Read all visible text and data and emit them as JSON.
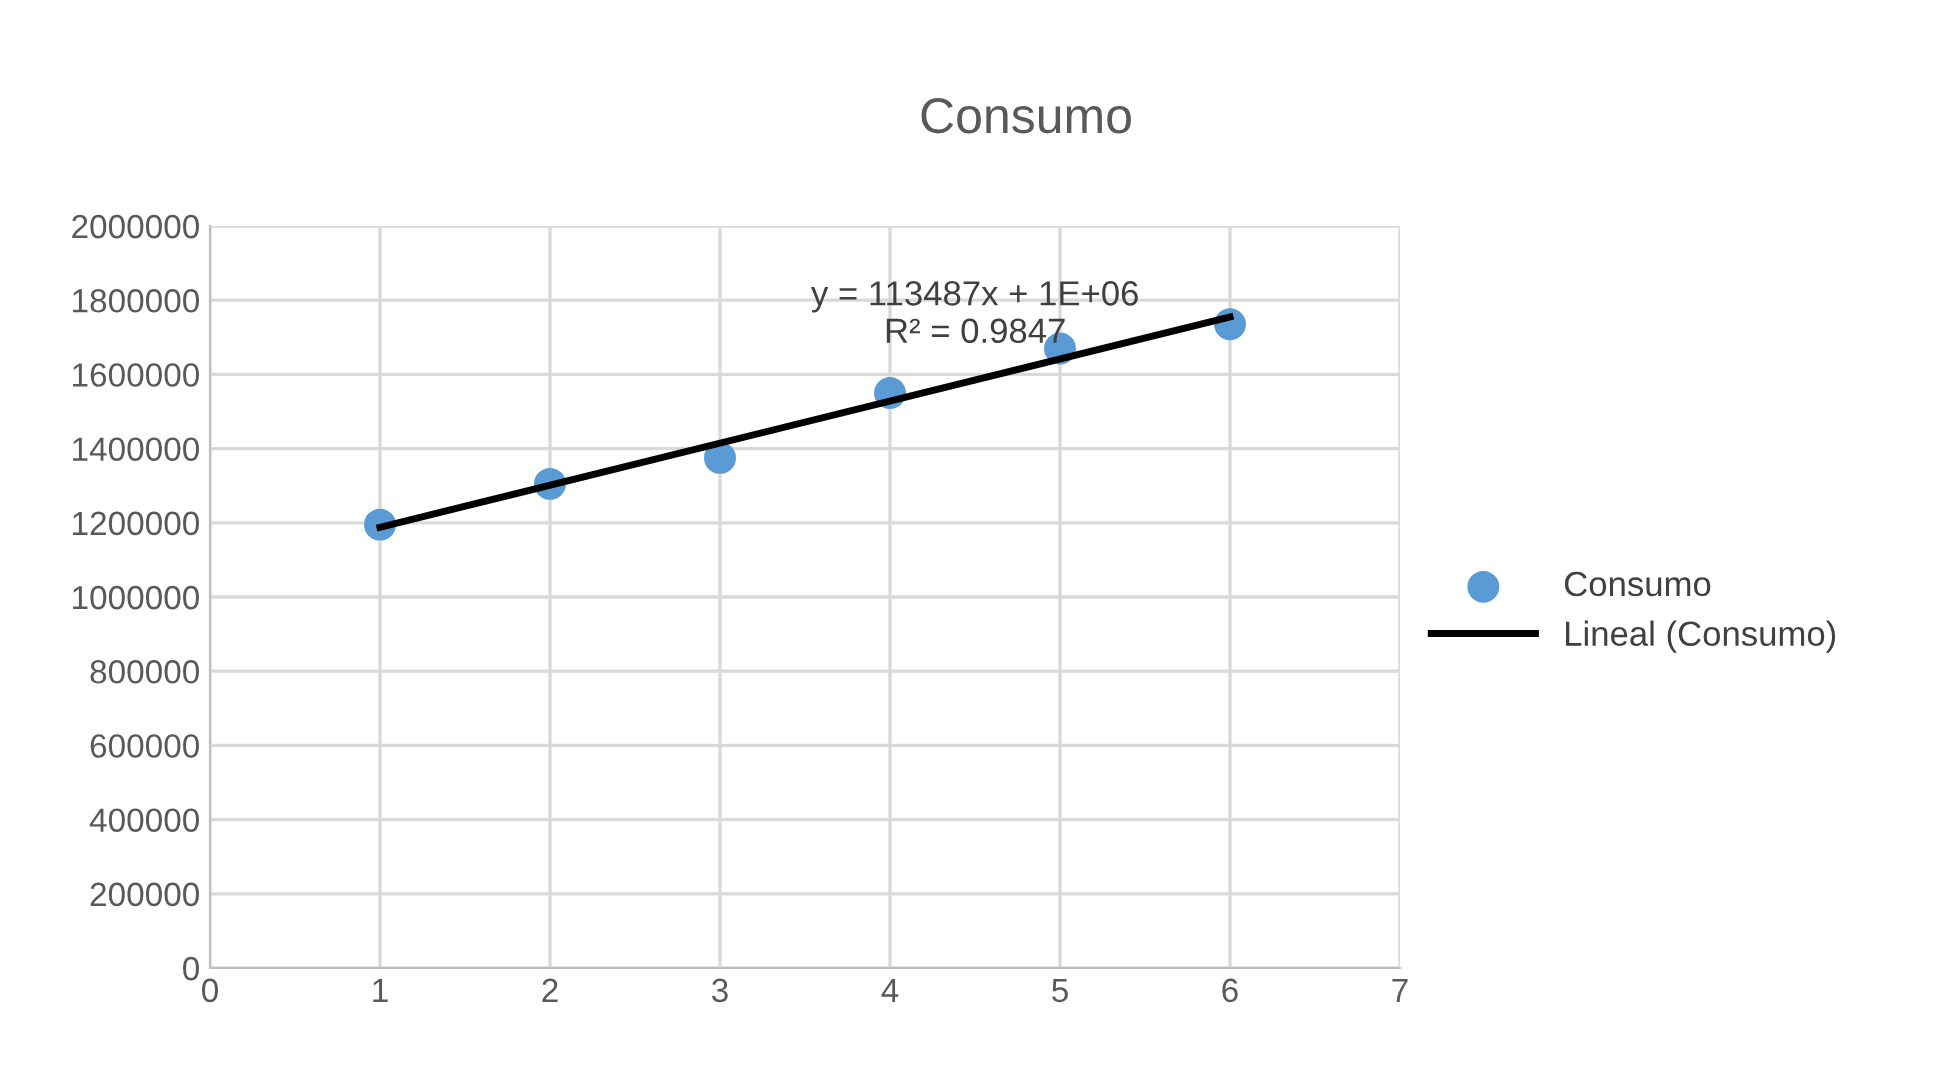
{
  "chart_data": {
    "type": "scatter",
    "title": "Consumo",
    "x": [
      1,
      2,
      3,
      4,
      5,
      6
    ],
    "series": [
      {
        "name": "Consumo",
        "color": "#5b9bd5",
        "marker": "circle",
        "values": [
          1195000,
          1305000,
          1375000,
          1550000,
          1670000,
          1735000
        ]
      },
      {
        "name": "Lineal (Consumo)",
        "type": "line",
        "color": "#000000",
        "marker": "none",
        "line_style": "solid",
        "x": [
          1,
          6
        ],
        "values": [
          1188000,
          1755000
        ]
      }
    ],
    "annotations": [
      "y = 113487x + 1E+06\nR² = 0.9847"
    ],
    "xlim": [
      0,
      7
    ],
    "xticks": [
      0,
      1,
      2,
      3,
      4,
      5,
      6,
      7
    ],
    "ylim": [
      0,
      2000000
    ],
    "yticks": [
      0,
      200000,
      400000,
      600000,
      800000,
      1000000,
      1200000,
      1400000,
      1600000,
      1800000,
      2000000
    ],
    "grid": true,
    "legend": "right"
  }
}
